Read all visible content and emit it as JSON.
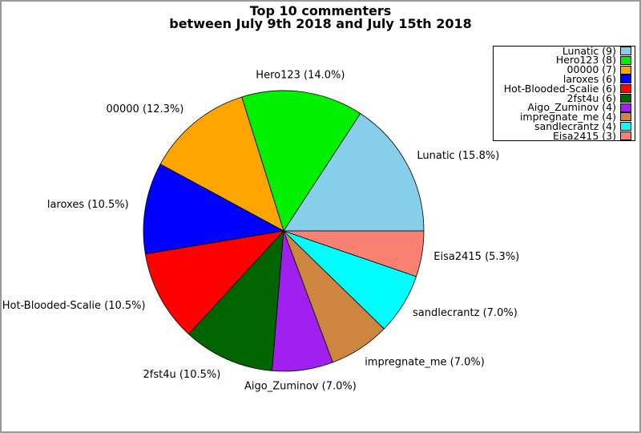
{
  "window": {
    "background": "#ffffff",
    "frame_color": "#999999"
  },
  "chart_data": {
    "type": "pie",
    "title": "Top 10 commenters",
    "subtitle": "between July 9th 2018 and July 15th 2018",
    "start_angle_deg": 0,
    "direction": "counterclockwise",
    "grid": false,
    "legend": {
      "position": "top-right",
      "border_color": "#000000",
      "background": "#ffffff"
    },
    "slices": [
      {
        "name": "Lunatic",
        "count": 9,
        "percent": 15.8,
        "label": "Lunatic (15.8%)",
        "legend_label": "Lunatic (9)",
        "color": "#87CEEB"
      },
      {
        "name": "Hero123",
        "count": 8,
        "percent": 14.0,
        "label": "Hero123 (14.0%)",
        "legend_label": "Hero123 (8)",
        "color": "#00F000"
      },
      {
        "name": "00000",
        "count": 7,
        "percent": 12.3,
        "label": "00000 (12.3%)",
        "legend_label": "00000 (7)",
        "color": "#FFA500"
      },
      {
        "name": "laroxes",
        "count": 6,
        "percent": 10.5,
        "label": "laroxes (10.5%)",
        "legend_label": "laroxes (6)",
        "color": "#0000FF"
      },
      {
        "name": "Hot-Blooded-Scalie",
        "count": 6,
        "percent": 10.5,
        "label": "Hot-Blooded-Scalie (10.5%)",
        "legend_label": "Hot-Blooded-Scalie (6)",
        "color": "#FF0000"
      },
      {
        "name": "2fst4u",
        "count": 6,
        "percent": 10.5,
        "label": "2fst4u (10.5%)",
        "legend_label": "2fst4u (6)",
        "color": "#006400"
      },
      {
        "name": "Aigo_Zuminov",
        "count": 4,
        "percent": 7.0,
        "label": "Aigo_Zuminov (7.0%)",
        "legend_label": "Aigo_Zuminov (4)",
        "color": "#A020F0"
      },
      {
        "name": "impregnate_me",
        "count": 4,
        "percent": 7.0,
        "label": "impregnate_me (7.0%)",
        "legend_label": "impregnate_me (4)",
        "color": "#CD853F"
      },
      {
        "name": "sandlecrantz",
        "count": 4,
        "percent": 7.0,
        "label": "sandlecrantz (7.0%)",
        "legend_label": "sandlecrantz (4)",
        "color": "#00FFFF"
      },
      {
        "name": "Eisa2415",
        "count": 3,
        "percent": 5.3,
        "label": "Eisa2415 (5.3%)",
        "legend_label": "Eisa2415 (3)",
        "color": "#FA8072"
      }
    ]
  }
}
